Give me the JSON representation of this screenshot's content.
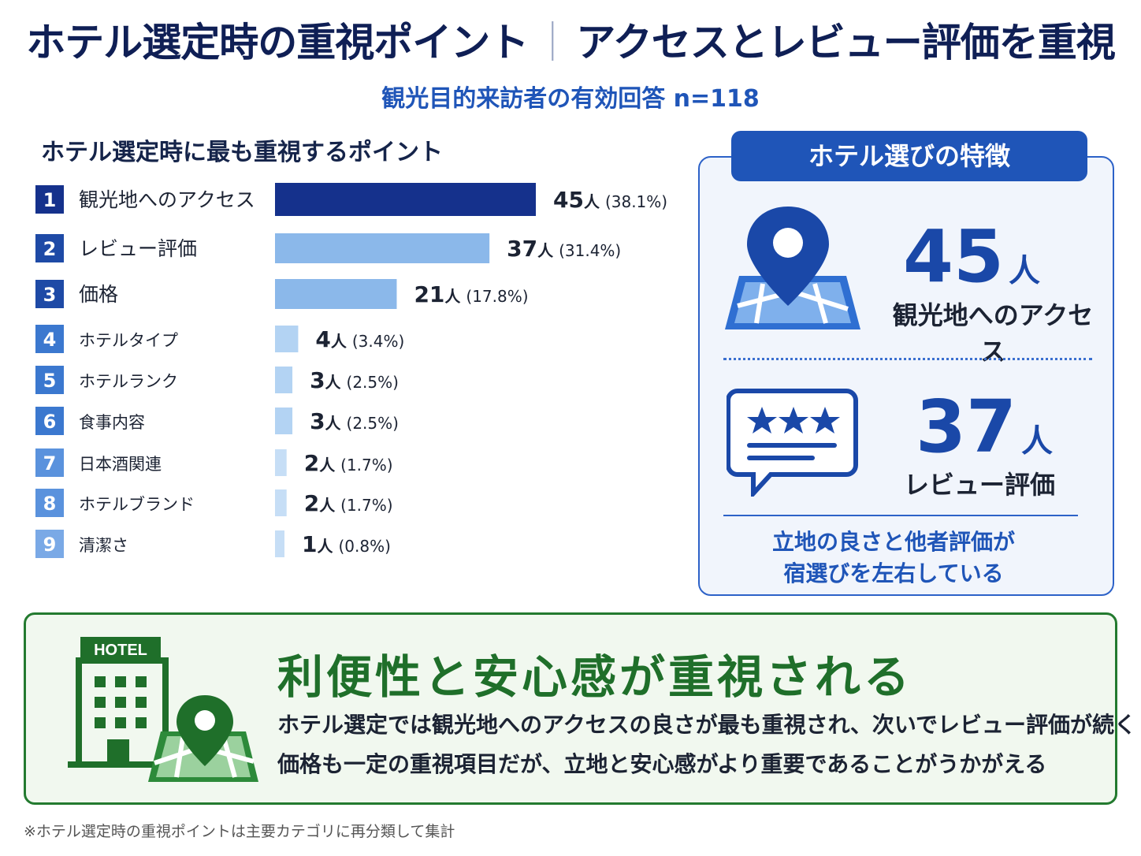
{
  "header": {
    "title_left": "ホテル選定時の重視ポイント",
    "title_sep": "｜",
    "title_right": "アクセスとレビュー評価を重視",
    "subtitle": "観光目的来訪者の有効回答 n=118"
  },
  "chart_data": {
    "type": "bar",
    "orientation": "horizontal",
    "title": "ホテル選定時に最も重視するポイント",
    "ranks": [
      "1",
      "2",
      "3",
      "4",
      "5",
      "6",
      "7",
      "8",
      "9"
    ],
    "categories": [
      "観光地へのアクセス",
      "レビュー評価",
      "価格",
      "ホテルタイプ",
      "ホテルランク",
      "食事内容",
      "日本酒関連",
      "ホテルブランド",
      "清潔さ"
    ],
    "values": [
      45,
      37,
      21,
      4,
      3,
      3,
      2,
      2,
      1
    ],
    "unit": "人",
    "percent_labels": [
      "(38.1%)",
      "(31.4%)",
      "(17.8%)",
      "(3.4%)",
      "(2.5%)",
      "(2.5%)",
      "(1.7%)",
      "(1.7%)",
      "(0.8%)"
    ],
    "bar_colors": [
      "#15318c",
      "#8bb8ea",
      "#8bb8ea",
      "#b3d3f3",
      "#b3d3f3",
      "#b3d3f3",
      "#c6def6",
      "#c6def6",
      "#c6def6"
    ],
    "rank_colors": [
      "#15318c",
      "#1e4aa6",
      "#1e4aa6",
      "#3b78cf",
      "#3b78cf",
      "#3b78cf",
      "#5a92dd",
      "#5a92dd",
      "#7aa9e6"
    ]
  },
  "panel": {
    "heading": "ホテル選びの特徴",
    "stat1_value": "45",
    "stat1_unit": "人",
    "stat1_label": "観光地へのアクセス",
    "stat1_icon": "map-pin-icon",
    "stat2_value": "37",
    "stat2_unit": "人",
    "stat2_label": "レビュー評価",
    "stat2_icon": "review-stars-icon",
    "message_line1": "立地の良さと他者評価が",
    "message_line2": "宿選びを左右している"
  },
  "bottom": {
    "hotel_sign": "HOTEL",
    "headline": "利便性と安心感が重視される",
    "line1": "ホテル選定では観光地へのアクセスの良さが最も重視され、次いでレビュー評価が続く",
    "line2": "価格も一定の重視項目だが、立地と安心感がより重要であることがうかがえる"
  },
  "footnote": "※ホテル選定時の重視ポイントは主要カテゴリに再分類して集計",
  "colors": {
    "navy": "#0f1f55",
    "accent_blue": "#1f55b8",
    "green": "#1f6f2a"
  }
}
